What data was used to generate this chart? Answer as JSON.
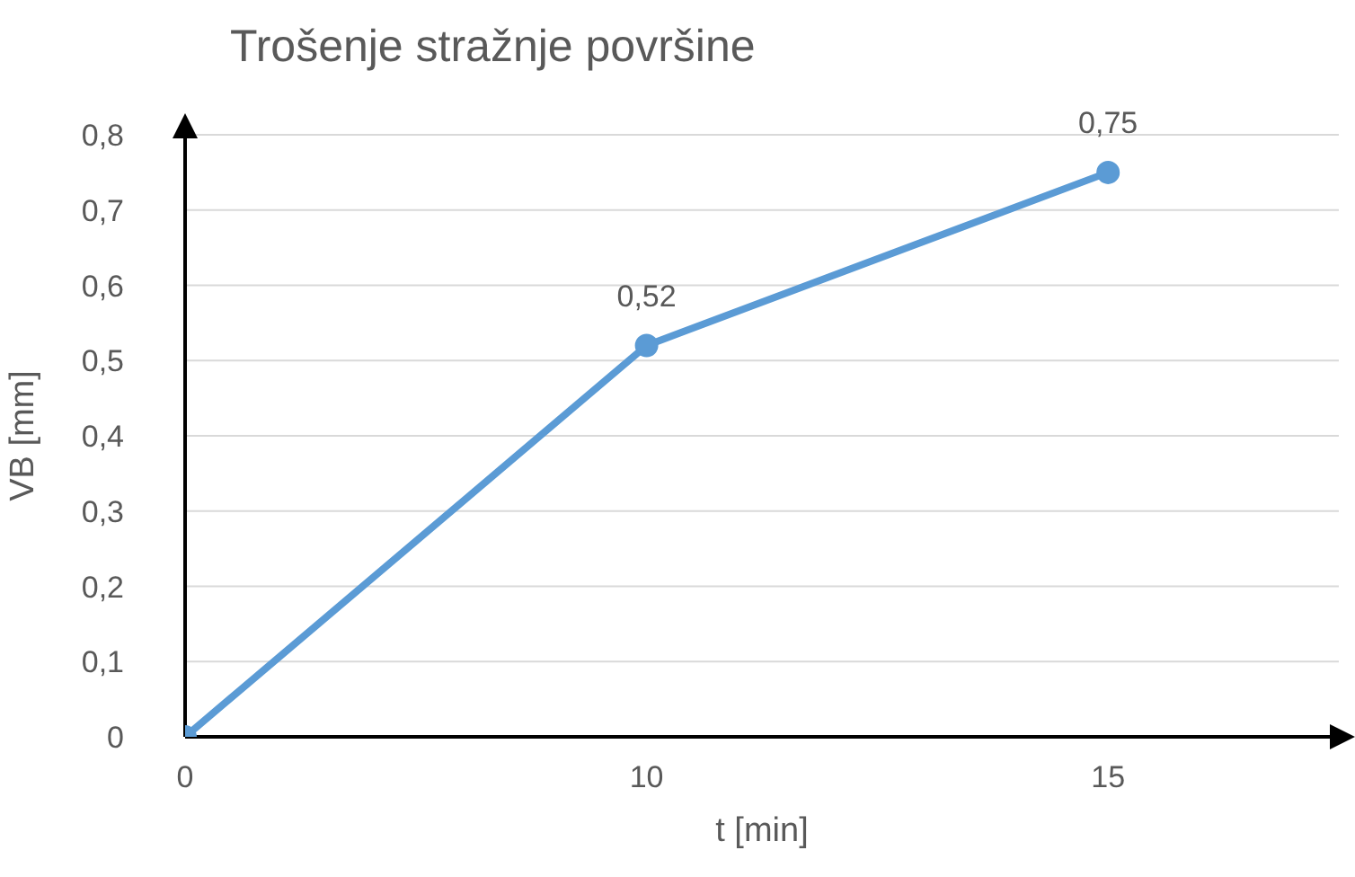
{
  "chart_data": {
    "type": "line",
    "title": "Trošenje stražnje površine",
    "xlabel": "t [min]",
    "ylabel": "VB [mm]",
    "categories": [
      "0",
      "10",
      "15"
    ],
    "series": [
      {
        "color": "#5b9bd5",
        "values": [
          0,
          0.52,
          0.75
        ],
        "value_labels": [
          null,
          "0,52",
          "0,75"
        ]
      }
    ],
    "ylim": [
      0,
      0.8
    ],
    "yticks": [
      {
        "value": 0,
        "label": "0"
      },
      {
        "value": 0.1,
        "label": "0,1"
      },
      {
        "value": 0.2,
        "label": "0,2"
      },
      {
        "value": 0.3,
        "label": "0,3"
      },
      {
        "value": 0.4,
        "label": "0,4"
      },
      {
        "value": 0.5,
        "label": "0,5"
      },
      {
        "value": 0.6,
        "label": "0,6"
      },
      {
        "value": 0.7,
        "label": "0,7"
      },
      {
        "value": 0.8,
        "label": "0,8"
      }
    ],
    "grid": "y",
    "marker": "circle",
    "line_style": "solid"
  }
}
